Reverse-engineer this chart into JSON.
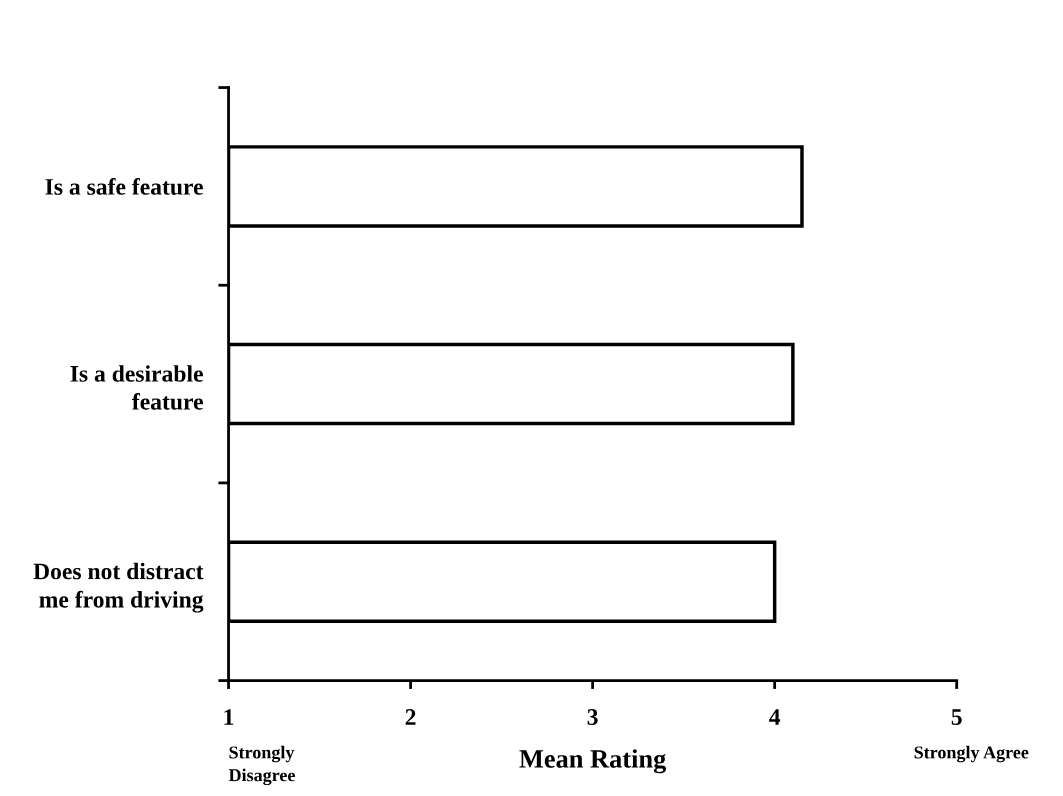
{
  "chart_data": {
    "type": "bar",
    "orientation": "horizontal",
    "categories": [
      "Is a safe feature",
      "Is a desirable\nfeature",
      "Does not distract\nme from driving"
    ],
    "values": [
      4.15,
      4.1,
      4.0
    ],
    "color": "#ffffff",
    "xlabel": "Mean Rating",
    "xlim": [
      1,
      5
    ],
    "xticks": [
      1,
      2,
      3,
      4,
      5
    ],
    "annotations": [
      "Strongly\nDisagree",
      "Strongly Agree"
    ],
    "grid": false,
    "legend": false
  }
}
